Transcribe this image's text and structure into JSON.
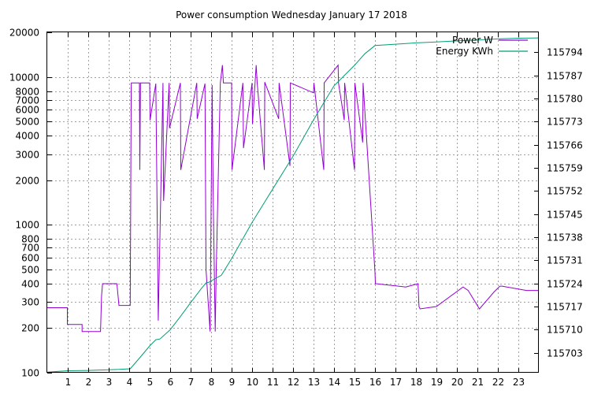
{
  "chart_data": {
    "type": "line",
    "title": "Power consumption Wednesday January 17 2018",
    "xlabel": "",
    "ylabel": "",
    "y2label": "",
    "xlim": [
      0,
      24
    ],
    "ylim": [
      100,
      20000
    ],
    "yscale": "log",
    "y2lim": [
      115697,
      115800
    ],
    "grid": true,
    "legend": "top-right",
    "x_ticks": [
      1,
      2,
      3,
      4,
      5,
      6,
      7,
      8,
      9,
      10,
      11,
      12,
      13,
      14,
      15,
      16,
      17,
      18,
      19,
      20,
      21,
      22,
      23
    ],
    "y_ticks": [
      100,
      200,
      300,
      400,
      500,
      600,
      700,
      800,
      1000,
      2000,
      3000,
      4000,
      5000,
      6000,
      7000,
      8000,
      10000,
      20000
    ],
    "y_tick_labels": [
      "100",
      "200",
      "300",
      "400",
      "500",
      "600",
      "700",
      "800",
      "1000",
      "2000",
      "3000",
      "4000",
      "5000",
      "6000",
      "7000",
      "8000",
      "10000",
      "20000"
    ],
    "y2_ticks": [
      115703,
      115710,
      115717,
      115724,
      115731,
      115738,
      115745,
      115752,
      115759,
      115766,
      115773,
      115780,
      115787,
      115794
    ],
    "series": [
      {
        "name": "Power W",
        "axis": "left",
        "color": "#9400d3",
        "x": [
          0,
          0.98,
          0.98,
          1.7,
          1.7,
          2.6,
          2.6,
          2.65,
          2.65,
          2.7,
          2.7,
          3.4,
          3.4,
          3.5,
          3.5,
          4.05,
          4.05,
          4.1,
          4.1,
          4.5,
          4.5,
          4.52,
          4.52,
          4.55,
          4.55,
          5.0,
          5.0,
          5.02,
          5.02,
          5.3,
          5.3,
          5.42,
          5.42,
          5.65,
          5.65,
          5.68,
          5.68,
          5.95,
          5.95,
          5.97,
          5.97,
          6.5,
          6.5,
          6.52,
          6.52,
          7.3,
          7.3,
          7.32,
          7.32,
          7.7,
          7.7,
          7.75,
          7.75,
          7.95,
          7.95,
          8.05,
          8.05,
          8.1,
          8.1,
          8.2,
          8.2,
          8.25,
          8.25,
          8.45,
          8.45,
          8.55,
          8.55,
          8.6,
          8.6,
          9.0,
          9.0,
          9.02,
          9.02,
          9.55,
          9.55,
          9.58,
          9.58,
          10.0,
          10.0,
          10.02,
          10.02,
          10.2,
          10.2,
          10.25,
          10.25,
          10.6,
          10.6,
          10.62,
          10.62,
          11.3,
          11.3,
          11.32,
          11.32,
          11.85,
          11.85,
          11.87,
          11.87,
          13.0,
          13.0,
          13.02,
          13.02,
          13.5,
          13.5,
          13.52,
          13.52,
          14.2,
          14.2,
          14.22,
          14.22,
          14.5,
          14.5,
          14.52,
          14.52,
          15.0,
          15.0,
          15.02,
          15.02,
          15.4,
          15.4,
          15.42,
          15.42,
          16.0,
          16.0,
          16.02,
          16.02,
          16.05,
          16.05,
          17.5,
          17.5,
          18.1,
          18.1,
          18.15,
          18.15,
          18.2,
          18.2,
          19.0,
          19.0,
          20.3,
          20.3,
          20.55,
          20.55,
          21.1,
          21.1,
          21.8,
          21.8,
          22.1,
          22.1,
          22.2,
          22.2,
          23.4,
          23.4,
          24
        ],
        "y": [
          275,
          275,
          212,
          212,
          190,
          190,
          190,
          330,
          330,
          400,
          400,
          400,
          400,
          285,
          285,
          285,
          285,
          9100,
          9100,
          9100,
          9100,
          2350,
          2350,
          9100,
          9100,
          9100,
          9100,
          5100,
          5100,
          9000,
          9000,
          225,
          225,
          9100,
          9100,
          1450,
          1450,
          9100,
          9100,
          4500,
          4500,
          9100,
          9100,
          2350,
          2350,
          9100,
          9100,
          5200,
          5200,
          9000,
          9000,
          500,
          500,
          190,
          190,
          8800,
          8800,
          1650,
          1650,
          190,
          190,
          500,
          500,
          9100,
          9100,
          12000,
          12000,
          9100,
          9100,
          9100,
          9100,
          2350,
          2350,
          9100,
          9100,
          3300,
          3300,
          9100,
          9100,
          4800,
          4800,
          12000,
          12000,
          9100,
          9100,
          2350,
          2350,
          9200,
          9200,
          5200,
          5200,
          9100,
          9100,
          2500,
          2500,
          9100,
          9100,
          7800,
          7800,
          9100,
          9100,
          2350,
          2350,
          9100,
          9100,
          12000,
          12000,
          9100,
          9100,
          5100,
          5100,
          9100,
          9100,
          2350,
          2350,
          9100,
          9100,
          3600,
          3600,
          9100,
          9100,
          480,
          480,
          400,
          400,
          400,
          400,
          380,
          380,
          400,
          400,
          280,
          280,
          270,
          270,
          280,
          280,
          380,
          380,
          360,
          360,
          270,
          270,
          350,
          350,
          385,
          385,
          385,
          385,
          360,
          360,
          360
        ]
      },
      {
        "name": "Energy KWh",
        "axis": "right",
        "color": "#009e73",
        "x": [
          0,
          1,
          2,
          3,
          3.5,
          4.05,
          4.5,
          5.0,
          5.3,
          5.5,
          6.0,
          6.5,
          7.0,
          7.5,
          7.75,
          7.9,
          8.2,
          8.5,
          9,
          10,
          11,
          12,
          13,
          14,
          15,
          15.5,
          16,
          17,
          18,
          19,
          20,
          21,
          22,
          23,
          24
        ],
        "y": [
          115697.2,
          115697.6,
          115697.7,
          115697.9,
          115698.0,
          115698.2,
          115701.4,
          115705.1,
          115707.0,
          115707.2,
          115710.0,
          115714.0,
          115718.2,
          115722.3,
          115724.2,
          115724.4,
          115725.5,
          115726.5,
          115731.5,
          115742.5,
          115752.5,
          115762.5,
          115773.5,
          115783.8,
          115790.0,
          115793.5,
          115796.0,
          115796.4,
          115796.8,
          115797.1,
          115797.4,
          115797.7,
          115798.0,
          115798.2,
          115798.3
        ]
      }
    ]
  }
}
